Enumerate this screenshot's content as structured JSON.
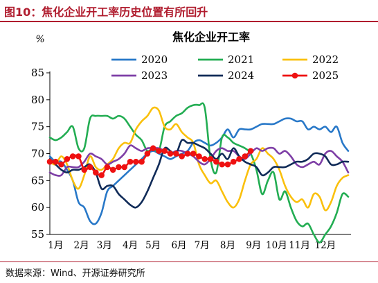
{
  "figure_title": "图10：焦化企业开工率历史位置有所回升",
  "source": "数据来源：Wind、开源证券研究所",
  "chart_data": {
    "type": "line",
    "title": "焦化企业开工率",
    "unit": "%",
    "ylim": [
      55,
      85
    ],
    "yticks": [
      55,
      60,
      65,
      70,
      75,
      80,
      85
    ],
    "x_range": [
      1,
      53
    ],
    "xticks": [
      {
        "label": "1月",
        "week": 2
      },
      {
        "label": "2月",
        "week": 6.5
      },
      {
        "label": "3月",
        "week": 10.5
      },
      {
        "label": "4月",
        "week": 15
      },
      {
        "label": "5月",
        "week": 19
      },
      {
        "label": "6月",
        "week": 23.5
      },
      {
        "label": "7月",
        "week": 27.5
      },
      {
        "label": "8月",
        "week": 32
      },
      {
        "label": "9月",
        "week": 36.5
      },
      {
        "label": "10月",
        "week": 40.5
      },
      {
        "label": "11月",
        "week": 44.5
      },
      {
        "label": "12月",
        "week": 49
      }
    ],
    "grid": false,
    "legend": "top",
    "series": [
      {
        "name": "2020",
        "color": "#2878c8",
        "marker": false,
        "values": [
          69.5,
          68.5,
          68.5,
          67.0,
          65.0,
          61.0,
          60.0,
          57.5,
          57.0,
          59.0,
          63.0,
          64.0,
          65.0,
          66.0,
          67.0,
          68.0,
          69.0,
          70.0,
          70.5,
          70.0,
          69.5,
          69.0,
          69.5,
          70.0,
          70.5,
          72.0,
          72.5,
          72.0,
          71.5,
          72.0,
          73.0,
          74.5,
          73.0,
          74.5,
          74.5,
          74.5,
          75.0,
          75.5,
          75.5,
          75.5,
          76.0,
          76.5,
          76.5,
          76.0,
          76.0,
          74.5,
          75.0,
          74.5,
          75.0,
          74.0,
          75.0,
          72.0,
          70.5
        ]
      },
      {
        "name": "2021",
        "color": "#22ad52",
        "marker": false,
        "values": [
          73.0,
          72.5,
          73.0,
          74.0,
          75.0,
          71.0,
          71.0,
          76.5,
          77.0,
          77.0,
          77.0,
          76.5,
          77.0,
          76.5,
          75.0,
          73.5,
          72.5,
          70.5,
          71.0,
          70.5,
          75.0,
          76.0,
          77.0,
          77.5,
          78.5,
          79.0,
          79.0,
          78.5,
          69.0,
          66.5,
          73.0,
          73.0,
          72.0,
          71.5,
          71.0,
          70.0,
          67.0,
          62.5,
          65.0,
          66.5,
          61.5,
          63.0,
          60.0,
          57.5,
          56.5,
          57.0,
          55.0,
          53.5,
          55.0,
          56.5,
          59.0,
          62.5,
          62.0
        ]
      },
      {
        "name": "2022",
        "color": "#fac00c",
        "marker": false,
        "values": [
          68.5,
          68.0,
          69.5,
          68.0,
          65.0,
          63.5,
          66.0,
          69.5,
          67.5,
          67.0,
          68.0,
          69.0,
          71.0,
          72.0,
          72.0,
          74.5,
          76.0,
          77.0,
          78.5,
          78.0,
          75.0,
          74.5,
          75.5,
          74.0,
          73.0,
          72.0,
          68.0,
          66.0,
          64.5,
          65.0,
          63.0,
          61.0,
          60.0,
          61.5,
          65.0,
          68.0,
          69.0,
          71.0,
          70.0,
          69.0,
          67.0,
          64.0,
          62.0,
          61.0,
          61.5,
          60.0,
          62.5,
          62.0,
          59.5,
          61.0,
          64.0,
          65.5,
          66.0
        ]
      },
      {
        "name": "2023",
        "color": "#7e3fa6",
        "marker": false,
        "values": [
          66.5,
          66.0,
          66.0,
          67.5,
          67.5,
          67.5,
          68.5,
          70.0,
          69.5,
          69.0,
          68.0,
          68.5,
          69.0,
          70.0,
          71.5,
          71.0,
          70.5,
          71.0,
          71.0,
          71.0,
          70.5,
          70.0,
          70.5,
          70.5,
          70.0,
          69.5,
          68.5,
          68.0,
          69.0,
          70.5,
          71.0,
          70.5,
          70.5,
          69.5,
          69.0,
          70.0,
          71.0,
          70.5,
          71.0,
          71.0,
          70.0,
          70.5,
          69.5,
          68.0,
          67.5,
          68.0,
          68.5,
          68.0,
          70.0,
          70.5,
          69.5,
          68.5,
          66.5
        ]
      },
      {
        "name": "2024",
        "color": "#102b58",
        "marker": false,
        "values": [
          69.0,
          68.0,
          67.0,
          66.5,
          67.0,
          67.0,
          67.5,
          68.0,
          66.5,
          63.5,
          64.0,
          64.0,
          62.5,
          61.5,
          60.5,
          60.0,
          61.0,
          63.0,
          65.5,
          68.0,
          71.0,
          70.5,
          70.0,
          72.5,
          72.0,
          72.0,
          71.5,
          71.0,
          70.0,
          69.0,
          70.0,
          69.0,
          71.0,
          69.5,
          68.5,
          68.0,
          67.5,
          66.0,
          66.5,
          67.5,
          67.5,
          67.5,
          68.0,
          68.5,
          68.5,
          69.0,
          70.0,
          70.0,
          69.5,
          68.0,
          68.0,
          68.5,
          68.5
        ]
      },
      {
        "name": "2025",
        "color": "#ee1111",
        "marker": true,
        "values": [
          68.5,
          68.5,
          68.0,
          69.0,
          69.5,
          69.5,
          67.0,
          67.5,
          66.5,
          66.0,
          67.5,
          67.0,
          67.5,
          67.5,
          68.5,
          68.5,
          68.5,
          70.0,
          71.0,
          70.5,
          70.5,
          70.0,
          70.0,
          69.5,
          70.0,
          70.0,
          69.5,
          69.0,
          69.0,
          68.5,
          68.0,
          68.0,
          68.5,
          69.0,
          69.5,
          70.5
        ]
      }
    ]
  }
}
